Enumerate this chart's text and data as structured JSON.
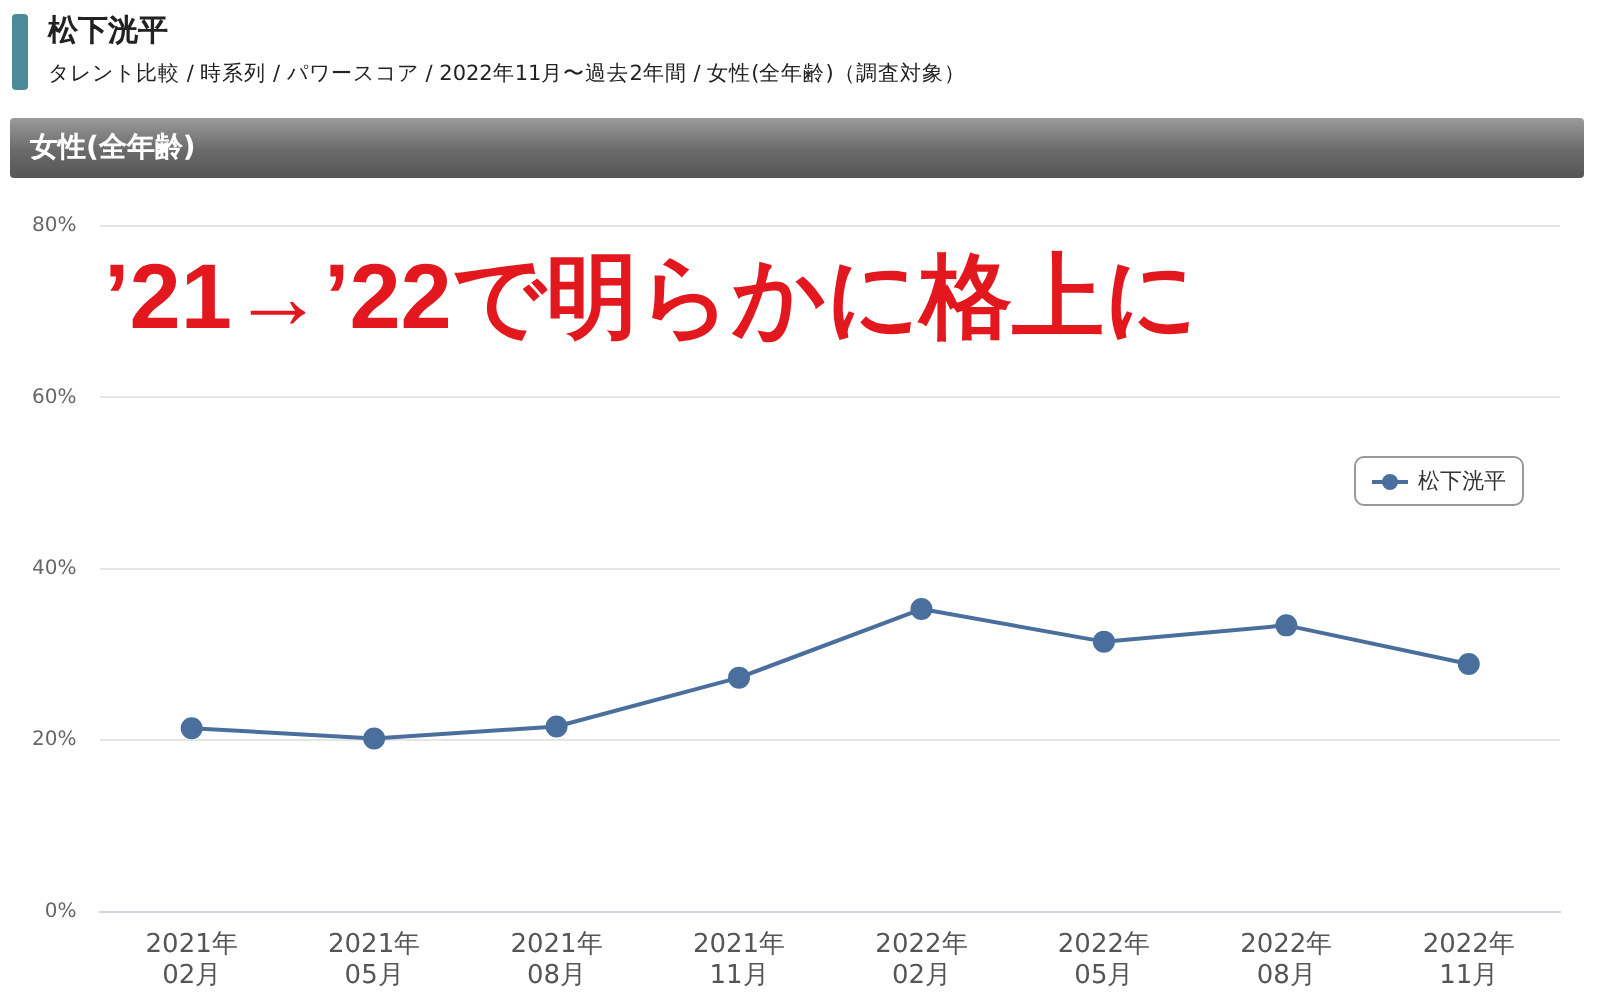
{
  "chart_data": {
    "type": "line",
    "title": "松下洸平",
    "subtitle": "タレント比較 / 時系列 / パワースコア / 2022年11月〜過去2年間 / 女性(全年齢)（調査対象）",
    "annotations": [
      "女性(全年齢)",
      "’21→’22で明らかに格上に"
    ],
    "categories": [
      "2021年\n02月",
      "2021年\n05月",
      "2021年\n08月",
      "2021年\n11月",
      "2022年\n02月",
      "2022年\n05月",
      "2022年\n08月",
      "2022年\n11月"
    ],
    "series": [
      {
        "name": "松下洸平",
        "color": "#4a6f9c",
        "values": [
          21.4,
          20.2,
          21.6,
          27.3,
          35.3,
          31.5,
          33.4,
          28.9
        ]
      }
    ],
    "ylim": [
      0,
      80
    ],
    "yticks": [
      {
        "value": 0,
        "label": "0%"
      },
      {
        "value": 20,
        "label": "20%"
      },
      {
        "value": 40,
        "label": "40%"
      },
      {
        "value": 60,
        "label": "60%"
      },
      {
        "value": 80,
        "label": "80%"
      }
    ],
    "grid": "y",
    "legend": "top right",
    "marker": "circle",
    "line_style": "solid"
  }
}
